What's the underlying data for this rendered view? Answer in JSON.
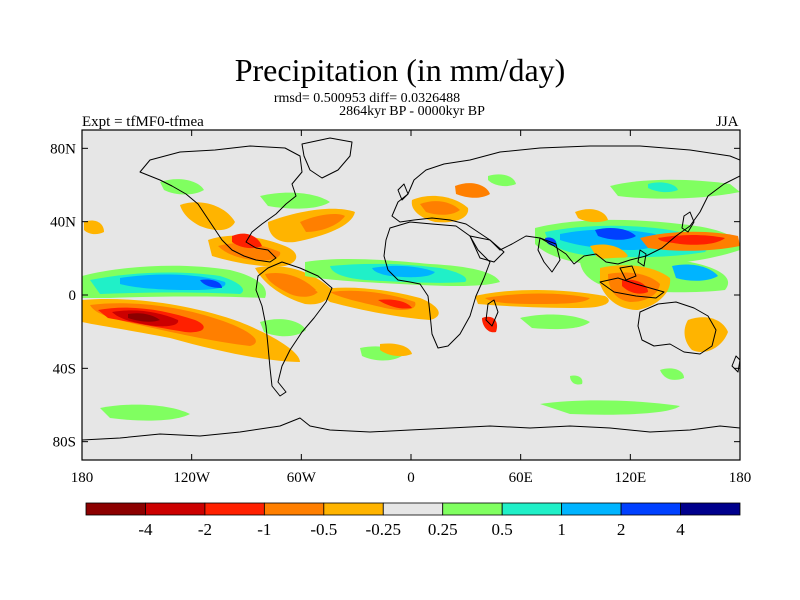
{
  "title": "Precipitation (in mm/day)",
  "stats_line": "rmsd= 0.500953 diff= 0.0326488",
  "period_line": "2864kyr BP - 0000kyr BP",
  "experiment_label": "Expt = tfMF0-tfmea",
  "season_label": "JJA",
  "map": {
    "projection": "cylindrical-equidistant",
    "lon_range": [
      -180,
      180
    ],
    "lat_range": [
      -90,
      90
    ],
    "background_color": "#e6e6e6",
    "lat_ticks": [
      {
        "value": 80,
        "label": "80N"
      },
      {
        "value": 40,
        "label": "40N"
      },
      {
        "value": 0,
        "label": "0"
      },
      {
        "value": -40,
        "label": "40S"
      },
      {
        "value": -80,
        "label": "80S"
      }
    ],
    "lon_ticks": [
      {
        "value": -180,
        "label": "180"
      },
      {
        "value": -120,
        "label": "120W"
      },
      {
        "value": -60,
        "label": "60W"
      },
      {
        "value": 0,
        "label": "0"
      },
      {
        "value": 60,
        "label": "60E"
      },
      {
        "value": 120,
        "label": "120E"
      },
      {
        "value": 180,
        "label": "180"
      }
    ]
  },
  "colorbar": {
    "colors": [
      "#8c0000",
      "#cc0000",
      "#ff2000",
      "#ff7f00",
      "#ffb400",
      "#e6e6e6",
      "#80ff60",
      "#20f0c8",
      "#00b4ff",
      "#0040ff",
      "#00008c"
    ],
    "labels": [
      "-4",
      "-2",
      "-1",
      "-0.5",
      "-0.25",
      "0.25",
      "0.5",
      "1",
      "2",
      "4"
    ]
  }
}
